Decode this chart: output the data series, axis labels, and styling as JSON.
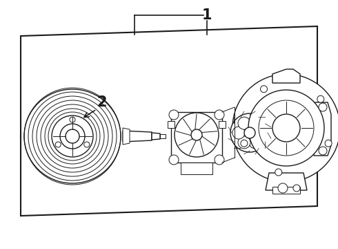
{
  "background_color": "#ffffff",
  "line_color": "#1a1a1a",
  "label1": "1",
  "label2": "2",
  "fig_w": 4.9,
  "fig_h": 3.6,
  "dpi": 100
}
